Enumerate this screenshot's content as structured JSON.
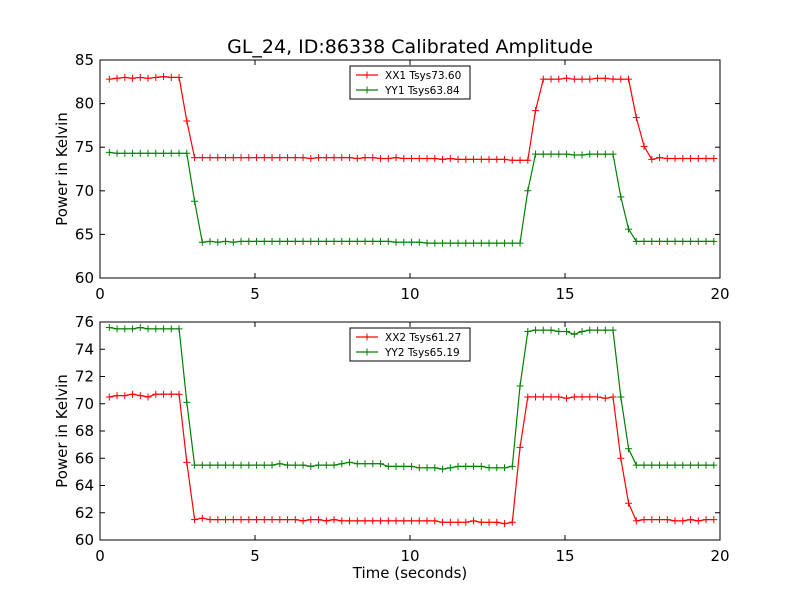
{
  "title": "GL_24, ID:86338 Calibrated Amplitude",
  "chart_data": [
    {
      "type": "line",
      "ylabel": "Power in Kelvin",
      "xlabel": "",
      "xlim": [
        0,
        20
      ],
      "ylim": [
        60,
        85
      ],
      "xticks": [
        "0",
        "5",
        "10",
        "15",
        "20"
      ],
      "yticks": [
        "60",
        "65",
        "70",
        "75",
        "80",
        "85"
      ],
      "legend_position": "top-center",
      "x": [
        0.3,
        0.55,
        0.8,
        1.05,
        1.3,
        1.55,
        1.8,
        2.05,
        2.3,
        2.55,
        2.8,
        3.05,
        3.3,
        3.55,
        3.8,
        4.05,
        4.3,
        4.55,
        4.8,
        5.05,
        5.3,
        5.55,
        5.8,
        6.05,
        6.3,
        6.55,
        6.8,
        7.05,
        7.3,
        7.55,
        7.8,
        8.05,
        8.3,
        8.55,
        8.8,
        9.05,
        9.3,
        9.55,
        9.8,
        10.05,
        10.3,
        10.55,
        10.8,
        11.05,
        11.3,
        11.55,
        11.8,
        12.05,
        12.3,
        12.55,
        12.8,
        13.05,
        13.3,
        13.55,
        13.8,
        14.05,
        14.3,
        14.55,
        14.8,
        15.05,
        15.3,
        15.55,
        15.8,
        16.05,
        16.3,
        16.55,
        16.8,
        17.05,
        17.3,
        17.55,
        17.8,
        18.05,
        18.3,
        18.55,
        18.8,
        19.05,
        19.3,
        19.55,
        19.8
      ],
      "series": [
        {
          "name": "XX1 Tsys73.60",
          "color": "#ff0000",
          "values": [
            82.8,
            82.9,
            83.0,
            82.9,
            83.0,
            82.9,
            83.0,
            83.1,
            83.0,
            83.0,
            78.0,
            73.8,
            73.8,
            73.8,
            73.8,
            73.8,
            73.8,
            73.8,
            73.8,
            73.8,
            73.8,
            73.8,
            73.8,
            73.8,
            73.8,
            73.8,
            73.7,
            73.8,
            73.8,
            73.8,
            73.8,
            73.8,
            73.7,
            73.8,
            73.8,
            73.7,
            73.7,
            73.8,
            73.7,
            73.7,
            73.7,
            73.7,
            73.7,
            73.6,
            73.7,
            73.6,
            73.6,
            73.6,
            73.6,
            73.6,
            73.6,
            73.6,
            73.5,
            73.5,
            73.5,
            79.2,
            82.8,
            82.8,
            82.8,
            82.9,
            82.8,
            82.8,
            82.8,
            82.9,
            82.9,
            82.8,
            82.8,
            82.8,
            78.4,
            75.1,
            73.6,
            73.8,
            73.7,
            73.7,
            73.7,
            73.7,
            73.7,
            73.7,
            73.7
          ]
        },
        {
          "name": "YY1 Tsys63.84",
          "color": "#008000",
          "values": [
            74.4,
            74.3,
            74.3,
            74.3,
            74.3,
            74.3,
            74.3,
            74.3,
            74.3,
            74.3,
            74.3,
            68.8,
            64.1,
            64.2,
            64.1,
            64.2,
            64.1,
            64.2,
            64.2,
            64.2,
            64.2,
            64.2,
            64.2,
            64.2,
            64.2,
            64.2,
            64.2,
            64.2,
            64.2,
            64.2,
            64.2,
            64.2,
            64.2,
            64.2,
            64.2,
            64.2,
            64.2,
            64.1,
            64.1,
            64.1,
            64.1,
            64.0,
            64.0,
            64.0,
            64.0,
            64.0,
            64.0,
            64.0,
            64.0,
            64.0,
            64.0,
            64.0,
            64.0,
            64.0,
            70.0,
            74.2,
            74.2,
            74.2,
            74.2,
            74.2,
            74.1,
            74.1,
            74.2,
            74.2,
            74.2,
            74.2,
            69.3,
            65.6,
            64.2,
            64.2,
            64.2,
            64.2,
            64.2,
            64.2,
            64.2,
            64.2,
            64.2,
            64.2,
            64.2
          ]
        }
      ]
    },
    {
      "type": "line",
      "ylabel": "Power in Kelvin",
      "xlabel": "Time (seconds)",
      "xlim": [
        0,
        20
      ],
      "ylim": [
        60,
        76
      ],
      "xticks": [
        "0",
        "5",
        "10",
        "15",
        "20"
      ],
      "yticks": [
        "60",
        "62",
        "64",
        "66",
        "68",
        "70",
        "72",
        "74",
        "76"
      ],
      "legend_position": "top-center",
      "x": [
        0.3,
        0.55,
        0.8,
        1.05,
        1.3,
        1.55,
        1.8,
        2.05,
        2.3,
        2.55,
        2.8,
        3.05,
        3.3,
        3.55,
        3.8,
        4.05,
        4.3,
        4.55,
        4.8,
        5.05,
        5.3,
        5.55,
        5.8,
        6.05,
        6.3,
        6.55,
        6.8,
        7.05,
        7.3,
        7.55,
        7.8,
        8.05,
        8.3,
        8.55,
        8.8,
        9.05,
        9.3,
        9.55,
        9.8,
        10.05,
        10.3,
        10.55,
        10.8,
        11.05,
        11.3,
        11.55,
        11.8,
        12.05,
        12.3,
        12.55,
        12.8,
        13.05,
        13.3,
        13.55,
        13.8,
        14.05,
        14.3,
        14.55,
        14.8,
        15.05,
        15.3,
        15.55,
        15.8,
        16.05,
        16.3,
        16.55,
        16.8,
        17.05,
        17.3,
        17.55,
        17.8,
        18.05,
        18.3,
        18.55,
        18.8,
        19.05,
        19.3,
        19.55,
        19.8
      ],
      "series": [
        {
          "name": "XX2 Tsys61.27",
          "color": "#ff0000",
          "values": [
            70.5,
            70.6,
            70.6,
            70.7,
            70.6,
            70.5,
            70.7,
            70.7,
            70.7,
            70.7,
            65.7,
            61.5,
            61.6,
            61.5,
            61.5,
            61.5,
            61.5,
            61.5,
            61.5,
            61.5,
            61.5,
            61.5,
            61.5,
            61.5,
            61.5,
            61.4,
            61.5,
            61.5,
            61.4,
            61.5,
            61.4,
            61.4,
            61.4,
            61.4,
            61.4,
            61.4,
            61.4,
            61.4,
            61.4,
            61.4,
            61.4,
            61.4,
            61.4,
            61.3,
            61.3,
            61.3,
            61.3,
            61.4,
            61.3,
            61.3,
            61.3,
            61.2,
            61.3,
            66.8,
            70.5,
            70.5,
            70.5,
            70.5,
            70.5,
            70.4,
            70.5,
            70.5,
            70.5,
            70.5,
            70.4,
            70.5,
            66.0,
            62.7,
            61.4,
            61.5,
            61.5,
            61.5,
            61.5,
            61.4,
            61.4,
            61.5,
            61.4,
            61.5,
            61.5
          ]
        },
        {
          "name": "YY2 Tsys65.19",
          "color": "#008000",
          "values": [
            75.6,
            75.5,
            75.5,
            75.5,
            75.6,
            75.5,
            75.5,
            75.5,
            75.5,
            75.5,
            70.1,
            65.5,
            65.5,
            65.5,
            65.5,
            65.5,
            65.5,
            65.5,
            65.5,
            65.5,
            65.5,
            65.5,
            65.6,
            65.5,
            65.5,
            65.5,
            65.4,
            65.5,
            65.5,
            65.5,
            65.6,
            65.7,
            65.6,
            65.6,
            65.6,
            65.6,
            65.4,
            65.4,
            65.4,
            65.4,
            65.3,
            65.3,
            65.3,
            65.2,
            65.3,
            65.4,
            65.4,
            65.4,
            65.4,
            65.3,
            65.3,
            65.3,
            65.4,
            71.3,
            75.3,
            75.4,
            75.4,
            75.4,
            75.3,
            75.3,
            75.1,
            75.3,
            75.4,
            75.4,
            75.4,
            75.4,
            70.5,
            66.7,
            65.5,
            65.5,
            65.5,
            65.5,
            65.5,
            65.5,
            65.5,
            65.5,
            65.5,
            65.5,
            65.5
          ]
        }
      ]
    }
  ]
}
